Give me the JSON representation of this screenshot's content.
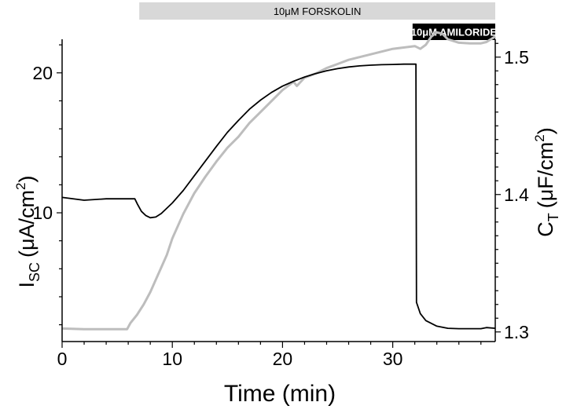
{
  "chart_data": {
    "type": "line",
    "xlabel": "Time (min)",
    "ylabel_left": {
      "main": "I",
      "sub": "SC",
      "unit": "(μA/cm",
      "sup": "2",
      "close": ")"
    },
    "ylabel_right": {
      "main": "C",
      "sub": "T",
      "unit": "(μF/cm",
      "sup": "2",
      "close": ")"
    },
    "xlim": [
      0,
      39.3
    ],
    "ylim_left": [
      0.8,
      22.4
    ],
    "ylim_right": [
      1.293,
      1.513
    ],
    "x_ticks": [
      0,
      10,
      20,
      30
    ],
    "y_left_ticks": [
      10,
      20
    ],
    "y_right_ticks": [
      1.3,
      1.4,
      1.5
    ],
    "y_right_tick_labels": [
      "1.3",
      "1.4",
      "1.5"
    ],
    "grid": false,
    "treatments": [
      {
        "label": "10μM FORSKOLIN",
        "start": 7.0,
        "end": 39.3,
        "color": "#d8d8d8",
        "text_color": "#000000"
      },
      {
        "label": "10μM AMILORIDE",
        "start": 31.8,
        "end": 39.3,
        "color": "#000000",
        "text_color": "#ffffff"
      }
    ],
    "series": [
      {
        "axis": "left",
        "color": "#000000",
        "points": [
          [
            0,
            11.1
          ],
          [
            2,
            10.9
          ],
          [
            4,
            11.0
          ],
          [
            6.6,
            11.0
          ],
          [
            6.85,
            10.6
          ],
          [
            7.2,
            10.1
          ],
          [
            7.6,
            9.8
          ],
          [
            8.0,
            9.65
          ],
          [
            8.5,
            9.7
          ],
          [
            9.0,
            9.95
          ],
          [
            10,
            10.7
          ],
          [
            11,
            11.6
          ],
          [
            12,
            12.65
          ],
          [
            13,
            13.7
          ],
          [
            14,
            14.75
          ],
          [
            15,
            15.75
          ],
          [
            16,
            16.6
          ],
          [
            17,
            17.4
          ],
          [
            18,
            18.05
          ],
          [
            19,
            18.6
          ],
          [
            20,
            19.05
          ],
          [
            21,
            19.4
          ],
          [
            22,
            19.7
          ],
          [
            23,
            19.95
          ],
          [
            24,
            20.15
          ],
          [
            25,
            20.3
          ],
          [
            26,
            20.42
          ],
          [
            27,
            20.5
          ],
          [
            28,
            20.55
          ],
          [
            29,
            20.58
          ],
          [
            30,
            20.6
          ],
          [
            31,
            20.62
          ],
          [
            32.1,
            20.62
          ],
          [
            32.15,
            3.6
          ],
          [
            32.5,
            2.8
          ],
          [
            33,
            2.3
          ],
          [
            34,
            1.9
          ],
          [
            35,
            1.75
          ],
          [
            36,
            1.72
          ],
          [
            38,
            1.72
          ],
          [
            38.5,
            1.8
          ],
          [
            39.3,
            1.75
          ]
        ]
      },
      {
        "axis": "right",
        "color": "#bdbdbd",
        "points": [
          [
            0,
            1.3025
          ],
          [
            2,
            1.302
          ],
          [
            4,
            1.302
          ],
          [
            5.9,
            1.302
          ],
          [
            6.2,
            1.3065
          ],
          [
            6.8,
            1.3125
          ],
          [
            7.4,
            1.32
          ],
          [
            8.0,
            1.329
          ],
          [
            8.5,
            1.338
          ],
          [
            9,
            1.347
          ],
          [
            9.5,
            1.356
          ],
          [
            10,
            1.368
          ],
          [
            11,
            1.386
          ],
          [
            12,
            1.401
          ],
          [
            13,
            1.413
          ],
          [
            14,
            1.424
          ],
          [
            15,
            1.434
          ],
          [
            16,
            1.442
          ],
          [
            17,
            1.452
          ],
          [
            18,
            1.46
          ],
          [
            19,
            1.468
          ],
          [
            20,
            1.476
          ],
          [
            21,
            1.482
          ],
          [
            21.3,
            1.479
          ],
          [
            22,
            1.485
          ],
          [
            23,
            1.488
          ],
          [
            24,
            1.492
          ],
          [
            25,
            1.495
          ],
          [
            26,
            1.498
          ],
          [
            27,
            1.5
          ],
          [
            28,
            1.502
          ],
          [
            29,
            1.504
          ],
          [
            30,
            1.506
          ],
          [
            31,
            1.507
          ],
          [
            32,
            1.508
          ],
          [
            32.5,
            1.506
          ],
          [
            33,
            1.509
          ],
          [
            33.5,
            1.515
          ],
          [
            34,
            1.518
          ],
          [
            34.5,
            1.517
          ],
          [
            35,
            1.513
          ],
          [
            36,
            1.5105
          ],
          [
            37,
            1.51
          ],
          [
            38,
            1.51
          ],
          [
            38.5,
            1.511
          ],
          [
            39.3,
            1.515
          ]
        ]
      }
    ]
  }
}
